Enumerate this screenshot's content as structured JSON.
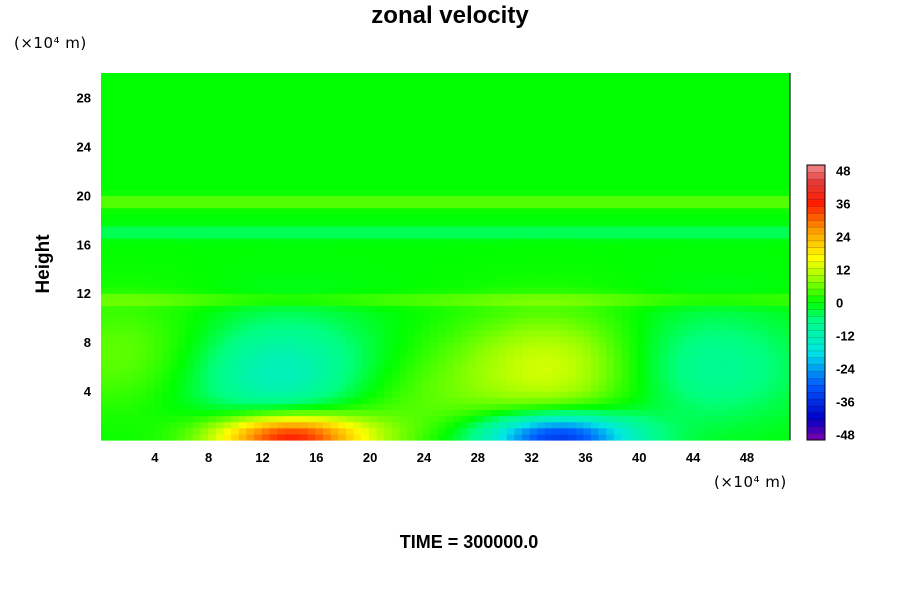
{
  "chart_data": {
    "type": "heatmap",
    "title": "zonal velocity",
    "ylabel": "Height",
    "xlabel": "",
    "x_unit_label": "(×10⁴ m)",
    "y_unit_label": "(×10⁴ m)",
    "footer": "TIME = 300000.0",
    "xlim": [
      0,
      51.2
    ],
    "ylim": [
      0,
      30
    ],
    "x_ticks": [
      4,
      8,
      12,
      16,
      20,
      24,
      28,
      32,
      36,
      40,
      44,
      48
    ],
    "y_ticks": [
      4,
      8,
      12,
      16,
      20,
      24,
      28
    ],
    "colorbar": {
      "min": -50,
      "max": 50,
      "ticks": [
        48,
        36,
        24,
        12,
        0,
        -12,
        -24,
        -36,
        -48
      ]
    },
    "background_value": 0,
    "features": [
      {
        "x": 14,
        "y": 0.3,
        "value": 38,
        "desc": "positive jet near surface"
      },
      {
        "x": 34,
        "y": 0.3,
        "value": -36,
        "desc": "negative jet near surface"
      },
      {
        "x": 33.5,
        "y": 6,
        "value": 13,
        "desc": "positive cell aloft"
      },
      {
        "x": 13.5,
        "y": 5.5,
        "value": -14,
        "desc": "negative cell aloft"
      },
      {
        "x": 45,
        "y": 6,
        "value": -9,
        "desc": "weak negative cell"
      },
      {
        "x": 2,
        "y": 7,
        "value": 6,
        "desc": "weak positive region"
      },
      {
        "x": 22,
        "y": 3,
        "value": 5,
        "desc": "weak positive region"
      }
    ],
    "bands": [
      {
        "y": 11.5,
        "value": 5,
        "desc": "thin positive band"
      },
      {
        "y": 17,
        "value": -5,
        "desc": "weak negative band"
      },
      {
        "y": 19.5,
        "value": 6,
        "desc": "thin positive band"
      }
    ]
  }
}
